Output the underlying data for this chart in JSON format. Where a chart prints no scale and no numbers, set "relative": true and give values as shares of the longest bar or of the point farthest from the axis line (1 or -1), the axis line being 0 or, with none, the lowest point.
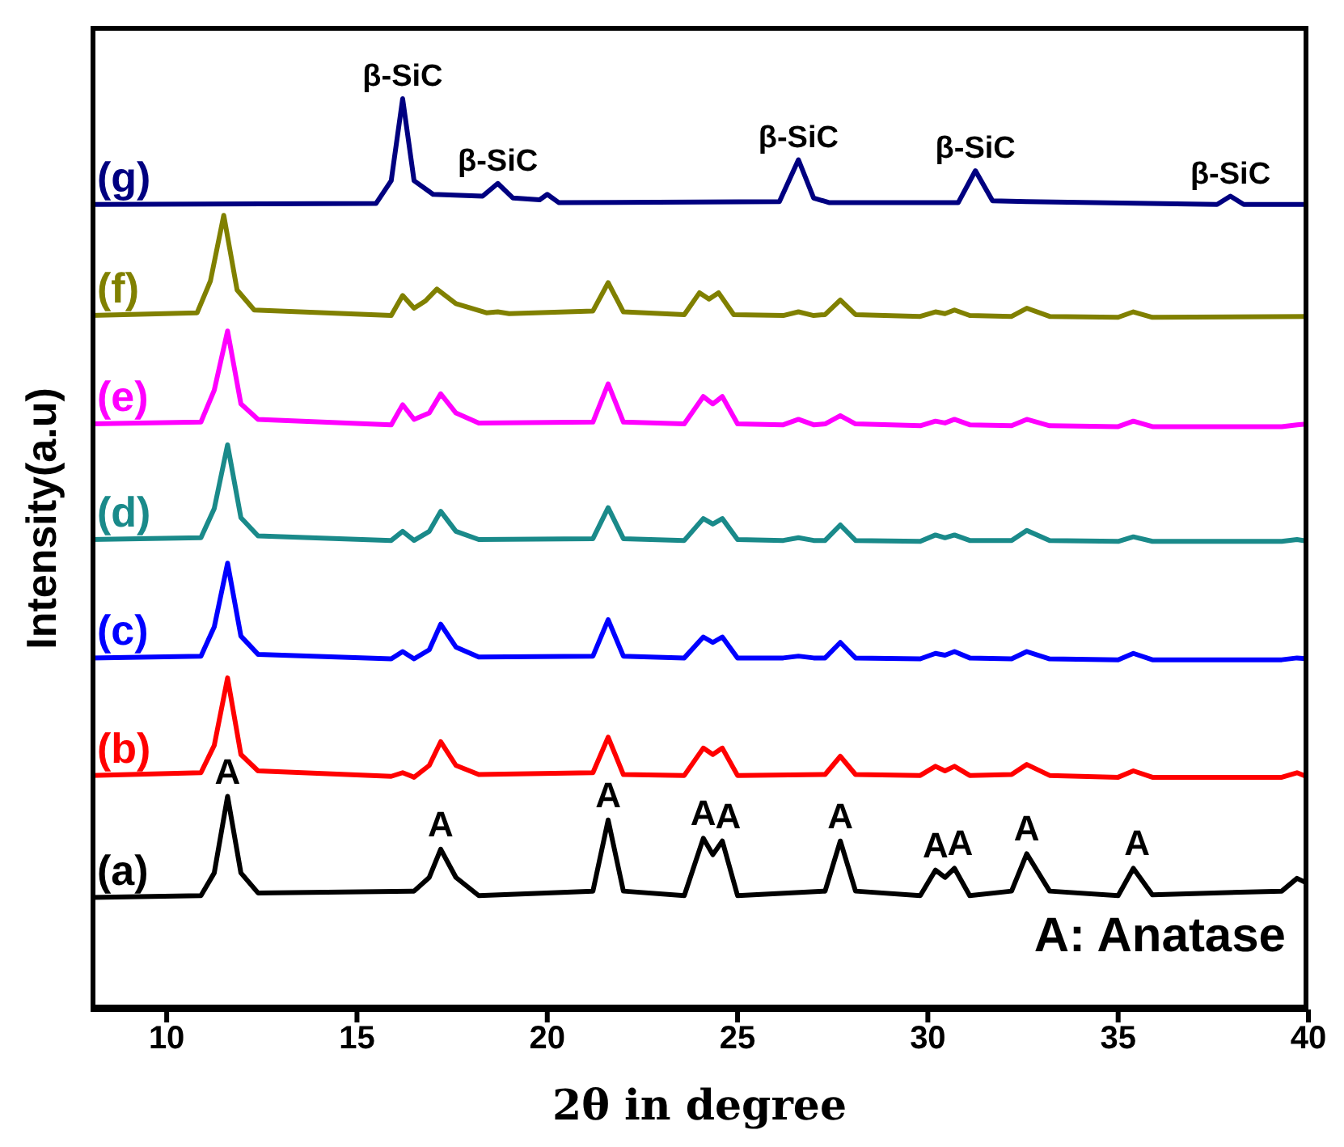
{
  "chart_data": {
    "type": "line",
    "relative": true,
    "xlabel": "2θ in degree",
    "ylabel": "Intensity(a.u)",
    "xlim": [
      8,
      40
    ],
    "xticks": [
      10,
      15,
      20,
      25,
      30,
      35,
      40
    ],
    "marker": "none",
    "line_style": "solid",
    "series": [
      {
        "name": "(a)",
        "color": "#000000",
        "x": [
          8,
          10.9,
          11.25,
          11.6,
          11.95,
          12.4,
          16.5,
          16.9,
          17.2,
          17.6,
          18.2,
          21.2,
          21.6,
          22.0,
          23.6,
          24.1,
          24.35,
          24.6,
          25.0,
          27.3,
          27.7,
          28.1,
          29.8,
          30.2,
          30.45,
          30.7,
          31.1,
          32.2,
          32.6,
          33.2,
          35.0,
          35.4,
          35.9,
          39.3,
          39.7,
          40
        ],
        "values": [
          0.123,
          0.125,
          0.15,
          0.234,
          0.15,
          0.128,
          0.13,
          0.145,
          0.176,
          0.145,
          0.125,
          0.13,
          0.208,
          0.13,
          0.125,
          0.188,
          0.17,
          0.185,
          0.125,
          0.13,
          0.185,
          0.13,
          0.125,
          0.153,
          0.145,
          0.155,
          0.125,
          0.13,
          0.171,
          0.13,
          0.125,
          0.155,
          0.126,
          0.13,
          0.144,
          0.138
        ]
      },
      {
        "name": "(b)",
        "color": "#ff0000",
        "x": [
          8,
          10.9,
          11.25,
          11.6,
          11.95,
          12.4,
          15.9,
          16.2,
          16.5,
          16.9,
          17.2,
          17.6,
          18.2,
          21.2,
          21.6,
          22.0,
          23.6,
          24.1,
          24.35,
          24.6,
          25.0,
          27.3,
          27.7,
          28.1,
          29.8,
          30.2,
          30.45,
          30.7,
          31.1,
          32.2,
          32.6,
          33.2,
          35.0,
          35.4,
          35.9,
          39.3,
          39.7,
          40
        ],
        "values": [
          0.257,
          0.26,
          0.29,
          0.364,
          0.28,
          0.262,
          0.256,
          0.26,
          0.255,
          0.268,
          0.294,
          0.268,
          0.258,
          0.26,
          0.299,
          0.258,
          0.257,
          0.287,
          0.28,
          0.287,
          0.257,
          0.258,
          0.278,
          0.258,
          0.257,
          0.267,
          0.262,
          0.267,
          0.257,
          0.258,
          0.269,
          0.257,
          0.255,
          0.262,
          0.255,
          0.255,
          0.26,
          0.255
        ]
      },
      {
        "name": "(c)",
        "color": "#0000ff",
        "x": [
          8,
          10.9,
          11.25,
          11.6,
          11.95,
          12.4,
          15.9,
          16.2,
          16.5,
          16.9,
          17.2,
          17.6,
          18.2,
          21.2,
          21.6,
          22.0,
          23.6,
          24.1,
          24.35,
          24.6,
          25.0,
          26.2,
          26.6,
          27.0,
          27.3,
          27.7,
          28.1,
          29.8,
          30.2,
          30.45,
          30.7,
          31.1,
          32.2,
          32.6,
          33.2,
          35.0,
          35.4,
          35.9,
          39.3,
          39.7,
          40
        ],
        "values": [
          0.386,
          0.388,
          0.42,
          0.49,
          0.41,
          0.39,
          0.385,
          0.393,
          0.385,
          0.395,
          0.423,
          0.398,
          0.387,
          0.388,
          0.428,
          0.388,
          0.386,
          0.409,
          0.403,
          0.409,
          0.386,
          0.386,
          0.388,
          0.386,
          0.386,
          0.403,
          0.386,
          0.385,
          0.391,
          0.389,
          0.393,
          0.386,
          0.385,
          0.393,
          0.385,
          0.384,
          0.391,
          0.384,
          0.384,
          0.386,
          0.385
        ]
      },
      {
        "name": "(d)",
        "color": "#1a8a8a",
        "x": [
          8,
          10.9,
          11.25,
          11.6,
          11.95,
          12.4,
          15.9,
          16.2,
          16.5,
          16.9,
          17.2,
          17.6,
          18.2,
          21.2,
          21.6,
          22.0,
          23.6,
          24.1,
          24.35,
          24.6,
          25.0,
          26.2,
          26.6,
          27.0,
          27.3,
          27.7,
          28.1,
          29.8,
          30.2,
          30.45,
          30.7,
          31.1,
          32.2,
          32.6,
          33.2,
          35.0,
          35.4,
          35.9,
          39.3,
          39.7,
          40
        ],
        "values": [
          0.516,
          0.518,
          0.55,
          0.62,
          0.54,
          0.52,
          0.515,
          0.525,
          0.515,
          0.525,
          0.547,
          0.525,
          0.516,
          0.517,
          0.551,
          0.517,
          0.515,
          0.539,
          0.533,
          0.539,
          0.516,
          0.515,
          0.518,
          0.515,
          0.515,
          0.532,
          0.515,
          0.514,
          0.521,
          0.518,
          0.521,
          0.515,
          0.515,
          0.526,
          0.515,
          0.514,
          0.519,
          0.514,
          0.514,
          0.516,
          0.514
        ]
      },
      {
        "name": "(e)",
        "color": "#ff00ff",
        "x": [
          8,
          10.9,
          11.25,
          11.6,
          11.95,
          12.4,
          15.9,
          16.2,
          16.5,
          16.9,
          17.2,
          17.6,
          18.2,
          21.2,
          21.6,
          22.0,
          23.6,
          24.1,
          24.35,
          24.6,
          25.0,
          26.2,
          26.6,
          27.0,
          27.3,
          27.7,
          28.1,
          29.8,
          30.2,
          30.45,
          30.7,
          31.1,
          32.2,
          32.6,
          33.2,
          35.0,
          35.4,
          35.9,
          39.3,
          39.7,
          40
        ],
        "values": [
          0.643,
          0.645,
          0.68,
          0.745,
          0.665,
          0.648,
          0.642,
          0.664,
          0.648,
          0.655,
          0.676,
          0.655,
          0.644,
          0.645,
          0.687,
          0.645,
          0.643,
          0.673,
          0.665,
          0.673,
          0.643,
          0.642,
          0.648,
          0.642,
          0.643,
          0.652,
          0.643,
          0.641,
          0.646,
          0.644,
          0.648,
          0.642,
          0.641,
          0.648,
          0.641,
          0.64,
          0.646,
          0.64,
          0.64,
          0.642,
          0.643
        ]
      },
      {
        "name": "(f)",
        "color": "#808000",
        "x": [
          8,
          10.8,
          11.15,
          11.5,
          11.85,
          12.3,
          15.9,
          16.2,
          16.5,
          16.8,
          17.1,
          17.6,
          18.4,
          18.7,
          19.0,
          21.2,
          21.6,
          22.0,
          23.6,
          24.0,
          24.25,
          24.5,
          24.9,
          26.2,
          26.6,
          27.0,
          27.3,
          27.7,
          28.1,
          29.8,
          30.2,
          30.45,
          30.7,
          31.1,
          32.2,
          32.6,
          33.2,
          35.0,
          35.4,
          35.9,
          40
        ],
        "values": [
          0.762,
          0.765,
          0.8,
          0.872,
          0.79,
          0.768,
          0.762,
          0.784,
          0.77,
          0.778,
          0.791,
          0.775,
          0.765,
          0.766,
          0.764,
          0.767,
          0.798,
          0.766,
          0.763,
          0.787,
          0.78,
          0.787,
          0.763,
          0.762,
          0.766,
          0.762,
          0.763,
          0.779,
          0.763,
          0.761,
          0.766,
          0.764,
          0.768,
          0.762,
          0.761,
          0.77,
          0.761,
          0.76,
          0.766,
          0.76,
          0.761
        ]
      },
      {
        "name": "(g)",
        "color": "#000080",
        "x": [
          8,
          15.5,
          15.9,
          16.2,
          16.5,
          17.0,
          18.3,
          18.7,
          19.1,
          19.8,
          20.0,
          20.3,
          26.1,
          26.6,
          27.0,
          27.4,
          30.8,
          31.25,
          31.7,
          32.6,
          37.6,
          37.95,
          38.3,
          40
        ],
        "values": [
          0.884,
          0.885,
          0.91,
          1.0,
          0.91,
          0.895,
          0.893,
          0.907,
          0.891,
          0.889,
          0.895,
          0.886,
          0.887,
          0.933,
          0.891,
          0.886,
          0.886,
          0.921,
          0.888,
          0.887,
          0.884,
          0.893,
          0.884,
          0.884
        ]
      }
    ],
    "annotations": [
      {
        "text": "A",
        "x": 11.6,
        "y": 0.234
      },
      {
        "text": "A",
        "x": 17.2,
        "y": 0.176
      },
      {
        "text": "A",
        "x": 21.6,
        "y": 0.208
      },
      {
        "text": "A",
        "x": 24.1,
        "y": 0.188
      },
      {
        "text": "A",
        "x": 24.75,
        "y": 0.185
      },
      {
        "text": "A",
        "x": 27.7,
        "y": 0.185
      },
      {
        "text": "A",
        "x": 30.2,
        "y": 0.153
      },
      {
        "text": "A",
        "x": 30.85,
        "y": 0.155
      },
      {
        "text": "A",
        "x": 32.6,
        "y": 0.171
      },
      {
        "text": "A",
        "x": 35.5,
        "y": 0.155
      },
      {
        "text": "β-SiC",
        "x": 16.2,
        "y": 1.0
      },
      {
        "text": "β-SiC",
        "x": 18.7,
        "y": 0.907
      },
      {
        "text": "β-SiC",
        "x": 26.6,
        "y": 0.933
      },
      {
        "text": "β-SiC",
        "x": 31.25,
        "y": 0.921
      },
      {
        "text": "β-SiC",
        "x": 37.95,
        "y": 0.893
      },
      "A: Anatase"
    ]
  }
}
